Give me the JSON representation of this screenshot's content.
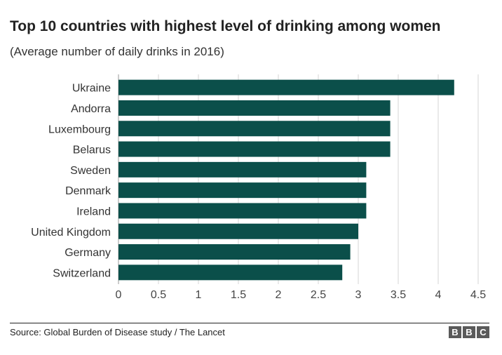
{
  "chart_data": {
    "type": "bar",
    "orientation": "horizontal",
    "title": "Top 10 countries with highest level of drinking among women",
    "subtitle": "(Average number of daily drinks in 2016)",
    "categories": [
      "Ukraine",
      "Andorra",
      "Luxembourg",
      "Belarus",
      "Sweden",
      "Denmark",
      "Ireland",
      "United Kingdom",
      "Germany",
      "Switzerland"
    ],
    "values": [
      4.2,
      3.4,
      3.4,
      3.4,
      3.1,
      3.1,
      3.1,
      3.0,
      2.9,
      2.8
    ],
    "xlim": [
      0,
      4.5
    ],
    "xticks": [
      "0",
      "0.5",
      "1",
      "1.5",
      "2",
      "2.5",
      "3",
      "3.5",
      "4",
      "4.5"
    ],
    "xtick_values": [
      0,
      0.5,
      1,
      1.5,
      2,
      2.5,
      3,
      3.5,
      4,
      4.5
    ],
    "grid": true,
    "bar_color": "#0b4f4a",
    "grid_color": "#d5d5d5"
  },
  "footer": {
    "source": "Source: Global Burden of Disease study / The Lancet",
    "logo_letters": [
      "B",
      "B",
      "C"
    ]
  }
}
